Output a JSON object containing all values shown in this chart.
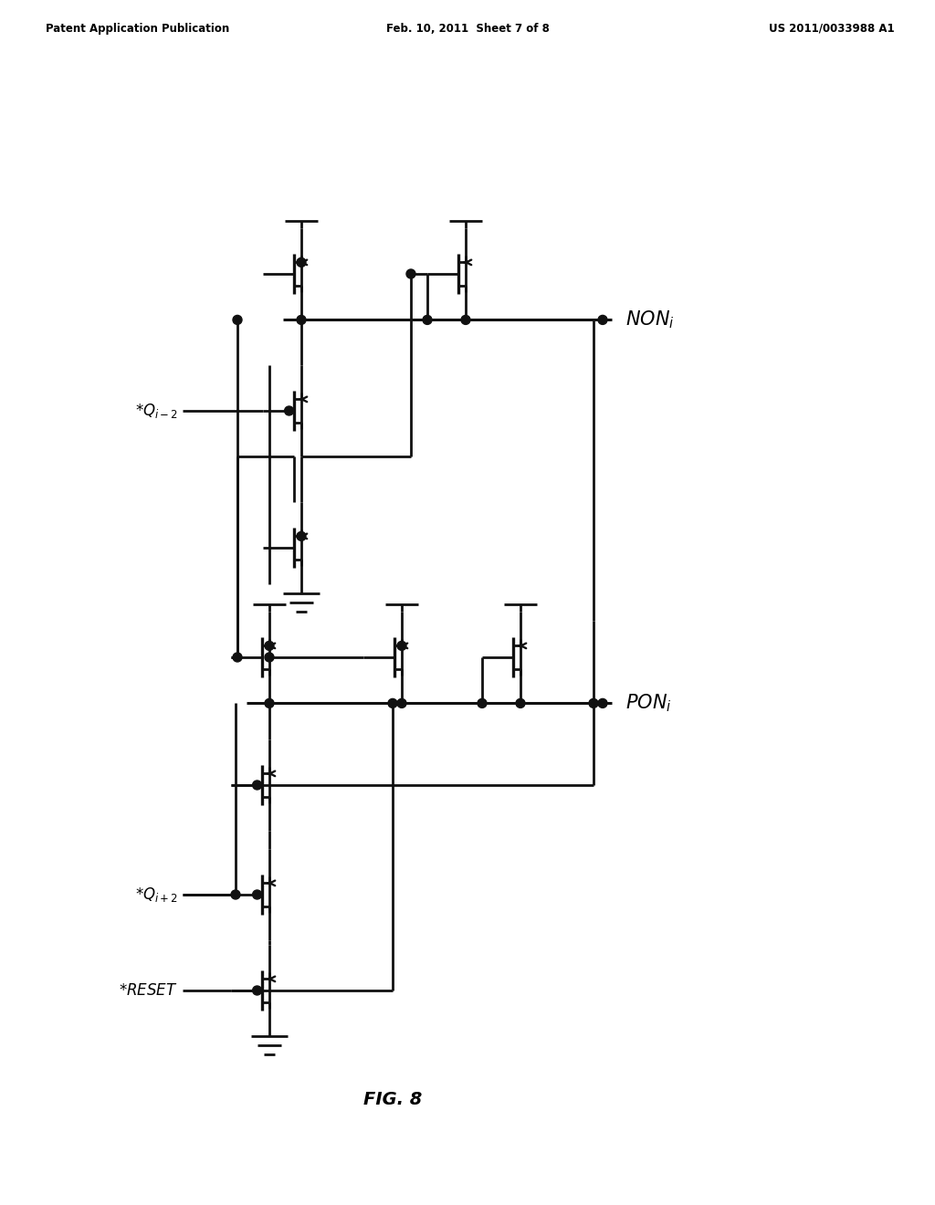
{
  "bg_color": "#ffffff",
  "line_color": "#111111",
  "line_width": 2.0,
  "header_left": "Patent Application Publication",
  "header_center": "Feb. 10, 2011  Sheet 7 of 8",
  "header_right": "US 2011/0033988 A1",
  "figure_label": "FIG. 8"
}
